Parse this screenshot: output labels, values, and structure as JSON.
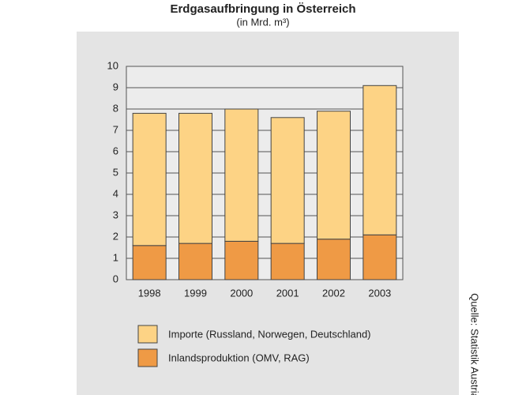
{
  "chart_data": {
    "type": "stacked-bar",
    "title": "Erdgasaufbringung in Österreich",
    "subtitle": "(in Mrd. m³)",
    "categories": [
      "1998",
      "1999",
      "2000",
      "2001",
      "2002",
      "2003"
    ],
    "series": [
      {
        "name": "Importe (Russland, Norwegen, Deutschland)",
        "color": "#fdd385",
        "values": [
          6.2,
          6.1,
          6.2,
          5.9,
          6.0,
          7.0
        ]
      },
      {
        "name": "Inlandsproduktion (OMV, RAG)",
        "color": "#ef9a45",
        "values": [
          1.6,
          1.7,
          1.8,
          1.7,
          1.9,
          2.1
        ]
      }
    ],
    "ylim": [
      0,
      10
    ],
    "yticks": [
      0,
      1,
      2,
      3,
      4,
      5,
      6,
      7,
      8,
      9,
      10
    ],
    "grid": true,
    "source": "Quelle: Statistik Austria"
  }
}
